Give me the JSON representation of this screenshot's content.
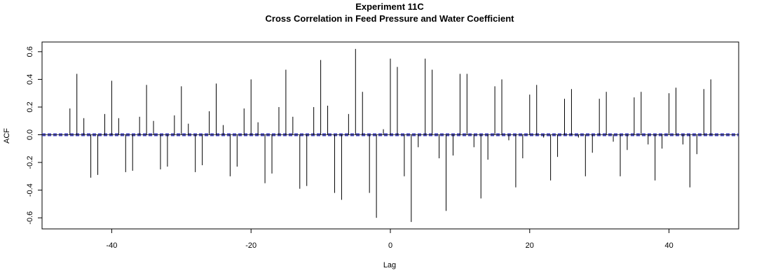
{
  "chart_data": {
    "type": "bar",
    "title": "Experiment  11C",
    "subtitle": "Cross Correlation in Feed Pressure and Water Coefficient",
    "xlabel": "Lag",
    "ylabel": "ACF",
    "xlim": [
      -50,
      50
    ],
    "ylim": [
      -0.68,
      0.67
    ],
    "x_ticks": [
      -40,
      -20,
      0,
      20,
      40
    ],
    "y_ticks": [
      -0.6,
      -0.4,
      -0.2,
      0.0,
      0.2,
      0.4,
      0.6
    ],
    "x_tick_labels": [
      "-40",
      "-20",
      "0",
      "20",
      "40"
    ],
    "y_tick_labels": [
      "-0.6",
      "-0.4",
      "-0.2",
      "0.0",
      "0.2",
      "0.4",
      "0.6"
    ],
    "grid": false,
    "confidence_band": 0.006,
    "confidence_color": "#4040c0",
    "line_color": "#000000",
    "x": [
      -46,
      -45,
      -44,
      -43,
      -42,
      -41,
      -40,
      -39,
      -38,
      -37,
      -36,
      -35,
      -34,
      -33,
      -32,
      -31,
      -30,
      -29,
      -28,
      -27,
      -26,
      -25,
      -24,
      -23,
      -22,
      -21,
      -20,
      -19,
      -18,
      -17,
      -16,
      -15,
      -14,
      -13,
      -12,
      -11,
      -10,
      -9,
      -8,
      -7,
      -6,
      -5,
      -4,
      -3,
      -2,
      -1,
      0,
      1,
      2,
      3,
      4,
      5,
      6,
      7,
      8,
      9,
      10,
      11,
      12,
      13,
      14,
      15,
      16,
      17,
      18,
      19,
      20,
      21,
      22,
      23,
      24,
      25,
      26,
      27,
      28,
      29,
      30,
      31,
      32,
      33,
      34,
      35,
      36,
      37,
      38,
      39,
      40,
      41,
      42,
      43,
      44,
      45,
      46
    ],
    "values": [
      0.19,
      0.44,
      0.12,
      -0.31,
      -0.29,
      0.15,
      0.39,
      0.12,
      -0.27,
      -0.26,
      0.13,
      0.36,
      0.1,
      -0.25,
      -0.23,
      0.14,
      0.35,
      0.08,
      -0.27,
      -0.22,
      0.17,
      0.37,
      0.07,
      -0.3,
      -0.23,
      0.19,
      0.4,
      0.09,
      -0.35,
      -0.28,
      0.2,
      0.47,
      0.13,
      -0.39,
      -0.37,
      0.2,
      0.54,
      0.21,
      -0.42,
      -0.47,
      0.15,
      0.62,
      0.31,
      -0.42,
      -0.6,
      0.04,
      0.55,
      0.49,
      -0.3,
      -0.63,
      -0.09,
      0.55,
      0.47,
      -0.17,
      -0.55,
      -0.15,
      0.44,
      0.44,
      -0.09,
      -0.46,
      -0.18,
      0.35,
      0.4,
      -0.04,
      -0.38,
      -0.17,
      0.29,
      0.36,
      -0.02,
      -0.33,
      -0.16,
      0.26,
      0.33,
      -0.02,
      -0.3,
      -0.13,
      0.26,
      0.31,
      -0.05,
      -0.3,
      -0.11,
      0.27,
      0.31,
      -0.07,
      -0.33,
      -0.1,
      0.3,
      0.34,
      -0.07,
      -0.38,
      -0.14,
      0.33,
      0.4
    ]
  }
}
